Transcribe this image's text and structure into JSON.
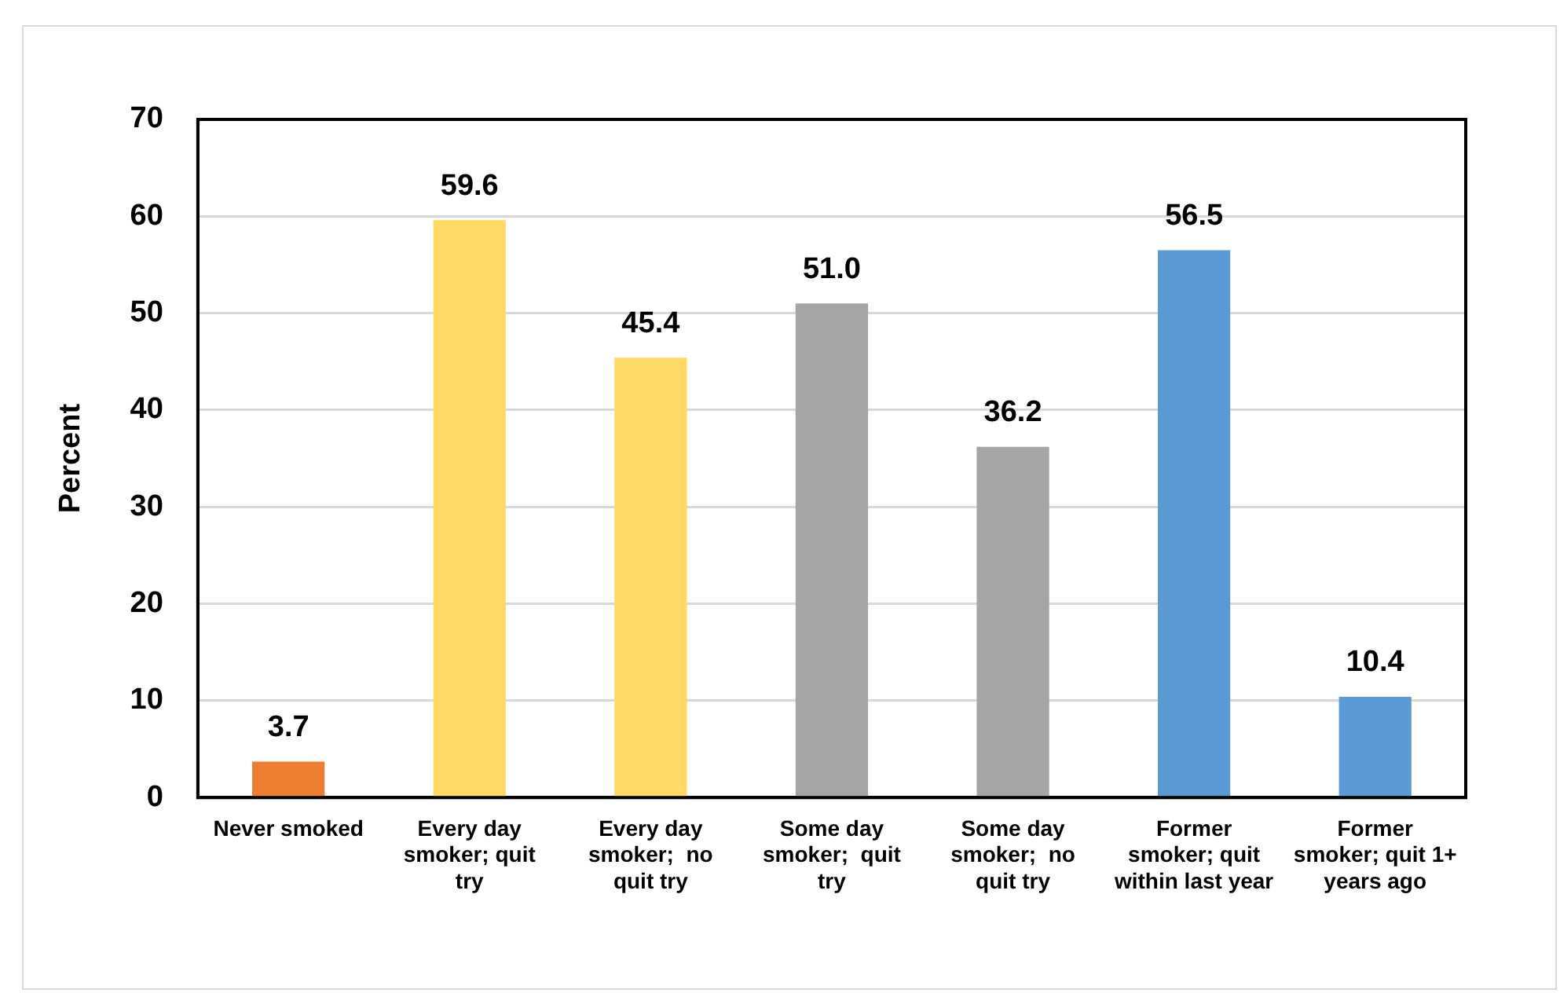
{
  "chart_data": {
    "type": "bar",
    "ylabel": "Percent",
    "categories": [
      "Never smoked",
      "Every day smoker; quit try",
      "Every day smoker;  no quit try",
      "Some day smoker;  quit try",
      "Some day smoker;  no quit try",
      "Former smoker; quit within last year",
      "Former smoker; quit 1+ years ago"
    ],
    "values": [
      3.7,
      59.6,
      45.4,
      51.0,
      36.2,
      56.5,
      10.4
    ],
    "colors": [
      "#ed7d31",
      "#ffd966",
      "#ffd966",
      "#a5a5a5",
      "#a5a5a5",
      "#5b9bd5",
      "#5b9bd5"
    ],
    "value_labels": [
      "3.7",
      "59.6",
      "45.4",
      "51.0",
      "36.2",
      "56.5",
      "10.4"
    ],
    "ylim": [
      0,
      70
    ],
    "yticks": [
      0,
      10,
      20,
      30,
      40,
      50,
      60,
      70
    ],
    "grid": "y",
    "legend": false
  }
}
